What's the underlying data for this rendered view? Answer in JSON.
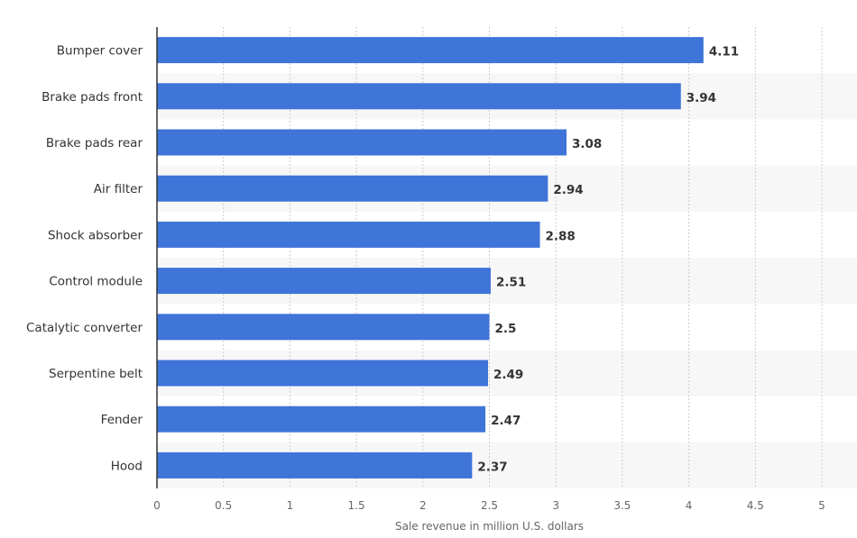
{
  "chart_data": {
    "type": "bar",
    "orientation": "horizontal",
    "categories": [
      "Bumper cover",
      "Brake pads front",
      "Brake pads rear",
      "Air filter",
      "Shock absorber",
      "Control module",
      "Catalytic converter",
      "Serpentine belt",
      "Fender",
      "Hood"
    ],
    "values": [
      4.11,
      3.94,
      3.08,
      2.94,
      2.88,
      2.51,
      2.5,
      2.49,
      2.47,
      2.37
    ],
    "value_labels": [
      "4.11",
      "3.94",
      "3.08",
      "2.94",
      "2.88",
      "2.51",
      "2.5",
      "2.49",
      "2.47",
      "2.37"
    ],
    "xlabel": "Sale revenue in million U.S. dollars",
    "ylabel": "",
    "xlim": [
      0,
      5
    ],
    "xticks": [
      "0",
      "0.5",
      "1",
      "1.5",
      "2",
      "2.5",
      "3",
      "3.5",
      "4",
      "4.5",
      "5"
    ],
    "grid": true,
    "bar_color": "#3f74d8",
    "alt_row_color": "#f7f7f7"
  }
}
